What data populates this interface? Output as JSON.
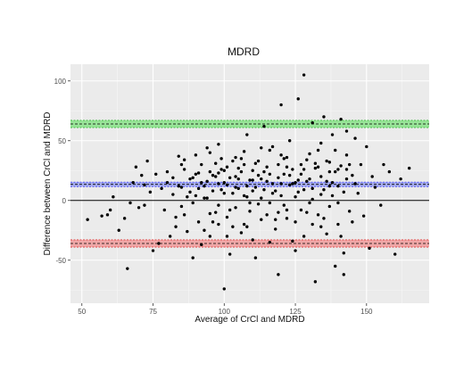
{
  "chart_data": {
    "type": "scatter",
    "title": "MDRD",
    "xlabel": "Average of CrCl and MDRD",
    "ylabel": "Difference between CrCl and MDRD",
    "xlim": [
      46,
      172
    ],
    "ylim": [
      -86,
      114
    ],
    "x_ticks": [
      50,
      75,
      100,
      125,
      150
    ],
    "y_ticks": [
      -50,
      0,
      50,
      100
    ],
    "grid": true,
    "legend": "none",
    "reference_lines": [
      {
        "name": "zero",
        "y": 0,
        "color": "#000000"
      },
      {
        "name": "mean-difference",
        "y": 13.5,
        "ci": [
          11.6,
          15.4
        ],
        "color": "#0000ff",
        "fill": "#9fa6f0"
      },
      {
        "name": "upper-limit-of-agreement",
        "y": 64,
        "ci": [
          61,
          67
        ],
        "color": "#00aa00",
        "fill": "#8fe38f"
      },
      {
        "name": "lower-limit-of-agreement",
        "y": -36,
        "ci": [
          -39,
          -33
        ],
        "color": "#dd0000",
        "fill": "#f0a0a0"
      }
    ],
    "points": [
      [
        52,
        -16
      ],
      [
        57,
        -13
      ],
      [
        59,
        -12
      ],
      [
        60,
        -8
      ],
      [
        61,
        3
      ],
      [
        63,
        -25
      ],
      [
        65,
        -15
      ],
      [
        66,
        -57
      ],
      [
        67,
        -2
      ],
      [
        68,
        15
      ],
      [
        69,
        28
      ],
      [
        70,
        -6
      ],
      [
        71,
        21
      ],
      [
        72,
        13
      ],
      [
        72,
        -4
      ],
      [
        73,
        33
      ],
      [
        74,
        7
      ],
      [
        75,
        -42
      ],
      [
        76,
        22
      ],
      [
        77,
        -36
      ],
      [
        78,
        10
      ],
      [
        79,
        -8
      ],
      [
        80,
        15
      ],
      [
        81,
        -30
      ],
      [
        82,
        19
      ],
      [
        83,
        -22
      ],
      [
        84,
        37
      ],
      [
        85,
        -5
      ],
      [
        85,
        11
      ],
      [
        86,
        26
      ],
      [
        87,
        -26
      ],
      [
        88,
        18
      ],
      [
        89,
        -48
      ],
      [
        90,
        38
      ],
      [
        90,
        4
      ],
      [
        91,
        23
      ],
      [
        92,
        -37
      ],
      [
        93,
        12
      ],
      [
        94,
        44
      ],
      [
        95,
        -11
      ],
      [
        96,
        21
      ],
      [
        97,
        31
      ],
      [
        98,
        -20
      ],
      [
        98,
        47
      ],
      [
        99,
        9
      ],
      [
        100,
        15
      ],
      [
        100,
        -74
      ],
      [
        101,
        28
      ],
      [
        102,
        -45
      ],
      [
        103,
        6
      ],
      [
        104,
        36
      ],
      [
        105,
        18
      ],
      [
        106,
        -27
      ],
      [
        107,
        41
      ],
      [
        108,
        12
      ],
      [
        108,
        55
      ],
      [
        109,
        -9
      ],
      [
        110,
        25
      ],
      [
        111,
        -48
      ],
      [
        112,
        33
      ],
      [
        113,
        2
      ],
      [
        114,
        62
      ],
      [
        115,
        16
      ],
      [
        116,
        -35
      ],
      [
        117,
        45
      ],
      [
        118,
        8
      ],
      [
        119,
        -62
      ],
      [
        120,
        38
      ],
      [
        120,
        80
      ],
      [
        121,
        22
      ],
      [
        122,
        -15
      ],
      [
        123,
        50
      ],
      [
        124,
        14
      ],
      [
        125,
        -42
      ],
      [
        126,
        85
      ],
      [
        127,
        30
      ],
      [
        128,
        105
      ],
      [
        129,
        -10
      ],
      [
        130,
        18
      ],
      [
        131,
        65
      ],
      [
        132,
        -68
      ],
      [
        133,
        42
      ],
      [
        134,
        5
      ],
      [
        135,
        70
      ],
      [
        136,
        -28
      ],
      [
        137,
        24
      ],
      [
        138,
        55
      ],
      [
        139,
        -55
      ],
      [
        140,
        12
      ],
      [
        141,
        68
      ],
      [
        142,
        -62
      ],
      [
        143,
        38
      ],
      [
        145,
        -18
      ],
      [
        146,
        52
      ],
      [
        147,
        6
      ],
      [
        148,
        30
      ],
      [
        150,
        45
      ],
      [
        151,
        -40
      ],
      [
        152,
        20
      ],
      [
        153,
        11
      ],
      [
        155,
        -4
      ],
      [
        156,
        30
      ],
      [
        158,
        24
      ],
      [
        160,
        -45
      ],
      [
        162,
        18
      ],
      [
        165,
        27
      ],
      [
        82,
        5
      ],
      [
        84,
        12
      ],
      [
        86,
        -12
      ],
      [
        88,
        7
      ],
      [
        90,
        22
      ],
      [
        91,
        -18
      ],
      [
        92,
        30
      ],
      [
        93,
        2
      ],
      [
        94,
        16
      ],
      [
        95,
        -30
      ],
      [
        96,
        8
      ],
      [
        97,
        20
      ],
      [
        98,
        -4
      ],
      [
        99,
        26
      ],
      [
        100,
        6
      ],
      [
        101,
        -14
      ],
      [
        102,
        19
      ],
      [
        103,
        33
      ],
      [
        104,
        -6
      ],
      [
        105,
        10
      ],
      [
        106,
        24
      ],
      [
        107,
        -20
      ],
      [
        108,
        3
      ],
      [
        109,
        17
      ],
      [
        110,
        -33
      ],
      [
        111,
        11
      ],
      [
        112,
        21
      ],
      [
        113,
        -16
      ],
      [
        114,
        9
      ],
      [
        115,
        28
      ],
      [
        116,
        -2
      ],
      [
        117,
        14
      ],
      [
        118,
        -24
      ],
      [
        119,
        19
      ],
      [
        120,
        4
      ],
      [
        121,
        35
      ],
      [
        122,
        -8
      ],
      [
        123,
        13
      ],
      [
        124,
        26
      ],
      [
        125,
        -18
      ],
      [
        126,
        7
      ],
      [
        127,
        22
      ],
      [
        128,
        -30
      ],
      [
        129,
        16
      ],
      [
        130,
        39
      ],
      [
        131,
        1
      ],
      [
        132,
        27
      ],
      [
        133,
        -12
      ],
      [
        134,
        20
      ],
      [
        135,
        9
      ],
      [
        136,
        33
      ],
      [
        137,
        -5
      ],
      [
        138,
        15
      ],
      [
        139,
        24
      ],
      [
        140,
        -20
      ],
      [
        141,
        29
      ],
      [
        142,
        7
      ],
      [
        143,
        18
      ],
      [
        144,
        -9
      ],
      [
        145,
        21
      ],
      [
        85,
        30
      ],
      [
        87,
        3
      ],
      [
        89,
        19
      ],
      [
        91,
        10
      ],
      [
        93,
        -25
      ],
      [
        95,
        24
      ],
      [
        97,
        -10
      ],
      [
        99,
        35
      ],
      [
        101,
        13
      ],
      [
        103,
        -22
      ],
      [
        105,
        27
      ],
      [
        107,
        4
      ],
      [
        109,
        -2
      ],
      [
        111,
        31
      ],
      [
        113,
        18
      ],
      [
        115,
        -12
      ],
      [
        117,
        6
      ],
      [
        119,
        30
      ],
      [
        121,
        -4
      ],
      [
        123,
        21
      ],
      [
        125,
        15
      ],
      [
        127,
        -8
      ],
      [
        129,
        34
      ],
      [
        131,
        10
      ],
      [
        133,
        28
      ],
      [
        135,
        -15
      ],
      [
        137,
        12
      ],
      [
        139,
        42
      ],
      [
        141,
        -30
      ],
      [
        143,
        26
      ],
      [
        80,
        24
      ],
      [
        83,
        -14
      ],
      [
        86,
        34
      ],
      [
        89,
        -2
      ],
      [
        92,
        15
      ],
      [
        95,
        40
      ],
      [
        98,
        23
      ],
      [
        101,
        -30
      ],
      [
        104,
        20
      ],
      [
        107,
        30
      ],
      [
        110,
        8
      ],
      [
        113,
        44
      ],
      [
        116,
        22
      ],
      [
        119,
        -10
      ],
      [
        122,
        36
      ],
      [
        125,
        3
      ],
      [
        128,
        26
      ],
      [
        131,
        -20
      ],
      [
        134,
        48
      ],
      [
        137,
        32
      ],
      [
        140,
        -2
      ],
      [
        143,
        58
      ],
      [
        146,
        14
      ],
      [
        149,
        -13
      ],
      [
        94,
        2
      ],
      [
        96,
        -18
      ],
      [
        98,
        14
      ],
      [
        100,
        25
      ],
      [
        102,
        -8
      ],
      [
        104,
        11
      ],
      [
        106,
        35
      ],
      [
        108,
        -22
      ],
      [
        110,
        17
      ],
      [
        112,
        -3
      ],
      [
        114,
        24
      ],
      [
        116,
        42
      ],
      [
        118,
        -16
      ],
      [
        120,
        14
      ],
      [
        122,
        28
      ],
      [
        124,
        -34
      ],
      [
        126,
        17
      ],
      [
        128,
        9
      ],
      [
        130,
        -2
      ],
      [
        132,
        31
      ],
      [
        134,
        -22
      ],
      [
        136,
        16
      ],
      [
        138,
        4
      ],
      [
        140,
        26
      ],
      [
        142,
        -44
      ],
      [
        144,
        30
      ]
    ]
  }
}
